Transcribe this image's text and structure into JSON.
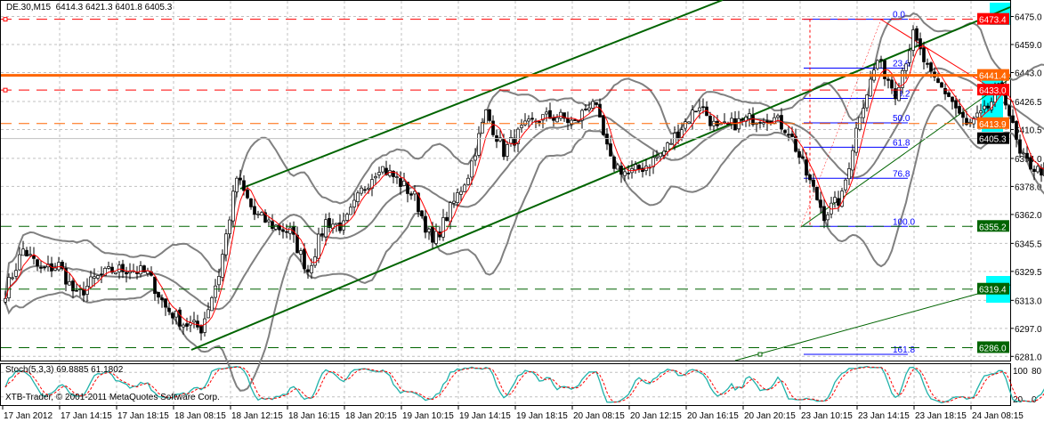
{
  "header": {
    "symbol": "DE.30,M15",
    "ohlc": "6414.3 6421.3 6401.8 6405.3"
  },
  "stoch_label": "Stoch(5,3,3) 69.8885 61.1802",
  "copyright": "XTB-Trader, © 2001-2011 MetaQuotes Software Corp.",
  "colors": {
    "bull": "#ffffff",
    "bear": "#000000",
    "bands": "#808080",
    "ma": "#ff0000",
    "channel": "#006400",
    "fib": "#0000ff",
    "highlight": "#00ffff",
    "stoch_main": "#20b2aa",
    "stoch_signal": "#ff0000"
  },
  "chart_data": {
    "type": "candlestick",
    "symbol": "DE.30",
    "timeframe": "M15",
    "ylim": [
      6281.0,
      6475.0
    ],
    "y_ticks": [
      "6475.0",
      "6459.0",
      "6443.0",
      "6426.5",
      "6410.5",
      "6394.0",
      "6378.0",
      "6362.0",
      "6345.5",
      "6329.5",
      "6313.0",
      "6297.0",
      "6281.0"
    ],
    "x_ticks": [
      "17 Jan 2012",
      "17 Jan 14:15",
      "17 Jan 18:15",
      "18 Jan 08:15",
      "18 Jan 12:15",
      "18 Jan 16:15",
      "18 Jan 20:15",
      "19 Jan 10:15",
      "19 Jan 14:15",
      "19 Jan 18:15",
      "20 Jan 08:15",
      "20 Jan 12:15",
      "20 Jan 16:15",
      "20 Jan 20:15",
      "23 Jan 10:15",
      "23 Jan 14:15",
      "23 Jan 18:15",
      "24 Jan 08:15"
    ],
    "approx_close_every_5_bars": [
      6318,
      6342,
      6330,
      6333,
      6315,
      6325,
      6330,
      6331,
      6328,
      6309,
      6300,
      6297,
      6328,
      6383,
      6362,
      6356,
      6352,
      6330,
      6358,
      6355,
      6375,
      6390,
      6382,
      6372,
      6345,
      6365,
      6385,
      6420,
      6398,
      6410,
      6417,
      6418,
      6414,
      6428,
      6392,
      6385,
      6390,
      6398,
      6412,
      6425,
      6410,
      6414,
      6417,
      6418,
      6410,
      6385,
      6362,
      6372,
      6420,
      6450,
      6432,
      6464,
      6440,
      6430,
      6412,
      6420,
      6436,
      6395,
      6387,
      6390,
      6405.3
    ],
    "price_lines": [
      {
        "value": "6473.4",
        "style": "dashed",
        "color": "#ff0000"
      },
      {
        "value": "6441.4",
        "style": "solid",
        "color": "#ff6600"
      },
      {
        "value": "6433.0",
        "style": "dashed",
        "color": "#ff0000"
      },
      {
        "value": "6413.9",
        "style": "dashed",
        "color": "#ff6600"
      },
      {
        "value": "6405.3",
        "style": "current",
        "color": "#000000"
      },
      {
        "value": "6355.2",
        "style": "dashed",
        "color": "#006400"
      },
      {
        "value": "6319.4",
        "style": "dashed",
        "color": "#006400"
      },
      {
        "value": "6286.0",
        "style": "dashed",
        "color": "#006400"
      }
    ],
    "fibonacci": {
      "high": 6473.4,
      "low": 6355.2,
      "levels": [
        "0.0",
        "23.6",
        "38.2",
        "50.0",
        "61.8",
        "76.8",
        "100.0",
        "161.8"
      ]
    },
    "stochastic": {
      "params": "5,3,3",
      "main": 69.8885,
      "signal": 61.1802,
      "levels": [
        "100",
        "80",
        "20",
        "0"
      ]
    }
  }
}
